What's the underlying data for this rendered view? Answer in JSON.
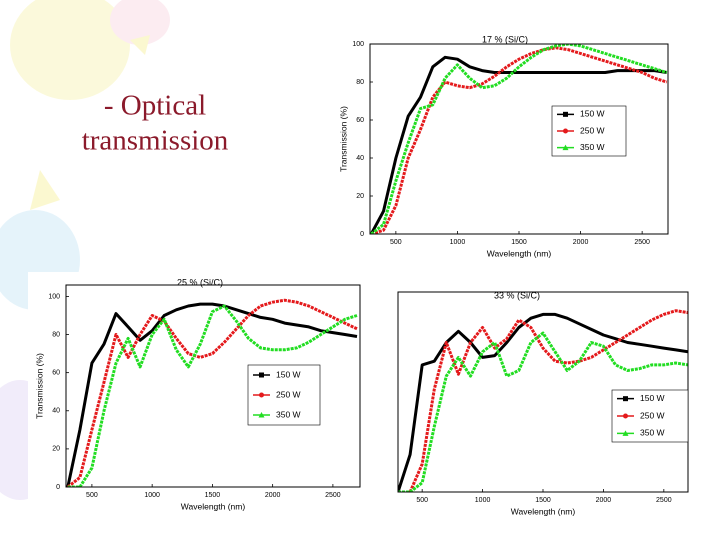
{
  "slide": {
    "title_lines": [
      "- Optical",
      "transmission"
    ]
  },
  "chart_data": [
    {
      "type": "line",
      "title": "17 % (Si/C)",
      "xlabel": "Wavelength (nm)",
      "ylabel": "Transmission (%)",
      "x": [
        300,
        400,
        500,
        600,
        700,
        800,
        900,
        1000,
        1100,
        1200,
        1300,
        1400,
        1500,
        1600,
        1700,
        1800,
        1900,
        2000,
        2100,
        2200,
        2300,
        2400,
        2500,
        2600,
        2700
      ],
      "series": [
        {
          "name": "150 W",
          "color": "#000000",
          "marker": "square",
          "values": [
            0,
            12,
            40,
            62,
            72,
            88,
            93,
            92,
            88,
            86,
            85,
            85,
            85,
            85,
            85,
            85,
            85,
            85,
            85,
            85,
            86,
            86,
            86,
            86,
            85
          ]
        },
        {
          "name": "250 W",
          "color": "#e41a1c",
          "marker": "circle",
          "values": [
            0,
            2,
            15,
            40,
            55,
            72,
            80,
            78,
            77,
            79,
            83,
            88,
            92,
            95,
            97,
            98,
            97,
            95,
            93,
            91,
            89,
            87,
            85,
            82,
            80
          ]
        },
        {
          "name": "350 W",
          "color": "#22dd22",
          "marker": "triangle",
          "values": [
            0,
            5,
            28,
            48,
            66,
            68,
            82,
            89,
            82,
            77,
            78,
            82,
            88,
            93,
            97,
            99,
            100,
            99,
            97,
            95,
            93,
            91,
            89,
            87,
            85
          ]
        }
      ],
      "xlim": [
        290,
        2710
      ],
      "ylim": [
        0,
        100
      ],
      "xticks": [
        500,
        1000,
        1500,
        2000,
        2500
      ],
      "yticks": [
        0,
        20,
        40,
        60,
        80,
        100
      ]
    },
    {
      "type": "line",
      "title": "25 % (Si/C)",
      "xlabel": "Wavelength (nm)",
      "ylabel": "Transmission (%)",
      "x": [
        300,
        400,
        500,
        600,
        700,
        800,
        900,
        1000,
        1100,
        1200,
        1300,
        1400,
        1500,
        1600,
        1700,
        1800,
        1900,
        2000,
        2100,
        2200,
        2300,
        2400,
        2500,
        2600,
        2700
      ],
      "series": [
        {
          "name": "150 W",
          "color": "#000000",
          "marker": "square",
          "values": [
            0,
            30,
            65,
            75,
            91,
            84,
            77,
            82,
            90,
            93,
            95,
            96,
            96,
            95,
            93,
            91,
            89,
            88,
            86,
            85,
            84,
            82,
            81,
            80,
            79
          ]
        },
        {
          "name": "250 W",
          "color": "#e41a1c",
          "marker": "circle",
          "values": [
            0,
            5,
            30,
            55,
            80,
            68,
            80,
            90,
            87,
            78,
            70,
            68,
            70,
            76,
            83,
            90,
            95,
            97,
            98,
            97,
            95,
            92,
            89,
            86,
            83
          ]
        },
        {
          "name": "350 W",
          "color": "#22dd22",
          "marker": "triangle",
          "values": [
            0,
            0,
            10,
            40,
            65,
            78,
            63,
            80,
            88,
            72,
            63,
            75,
            92,
            95,
            87,
            78,
            73,
            72,
            72,
            73,
            76,
            80,
            84,
            88,
            90
          ]
        }
      ],
      "xlim": [
        285,
        2725
      ],
      "ylim": [
        0,
        106
      ],
      "xticks": [
        500,
        1000,
        1500,
        2000,
        2500
      ],
      "yticks": [
        0,
        20,
        40,
        60,
        80,
        100
      ]
    },
    {
      "type": "line",
      "title": "33 % (Si/C)",
      "xlabel": "Wavelength (nm)",
      "x": [
        300,
        400,
        500,
        600,
        700,
        800,
        900,
        1000,
        1100,
        1200,
        1300,
        1400,
        1500,
        1600,
        1700,
        1800,
        1900,
        2000,
        2100,
        2200,
        2300,
        2400,
        2500,
        2600,
        2700
      ],
      "series": [
        {
          "name": "150 W",
          "color": "#000000",
          "marker": "square",
          "values": [
            0,
            20,
            68,
            70,
            80,
            86,
            80,
            72,
            73,
            80,
            88,
            93,
            95,
            95,
            93,
            90,
            87,
            84,
            82,
            80,
            79,
            78,
            77,
            76,
            75
          ]
        },
        {
          "name": "250 W",
          "color": "#e41a1c",
          "marker": "circle",
          "values": [
            0,
            0,
            15,
            55,
            80,
            63,
            80,
            88,
            77,
            82,
            92,
            88,
            77,
            70,
            69,
            70,
            72,
            76,
            80,
            84,
            88,
            92,
            95,
            97,
            96
          ]
        },
        {
          "name": "350 W",
          "color": "#22dd22",
          "marker": "triangle",
          "values": [
            0,
            0,
            5,
            35,
            62,
            72,
            62,
            75,
            80,
            62,
            65,
            80,
            85,
            75,
            65,
            70,
            80,
            78,
            68,
            65,
            66,
            68,
            68,
            69,
            68
          ]
        }
      ],
      "xlim": [
        300,
        2700
      ],
      "ylim": [
        0,
        107
      ],
      "xticks": [
        500,
        1000,
        1500,
        2000,
        2500
      ]
    }
  ]
}
